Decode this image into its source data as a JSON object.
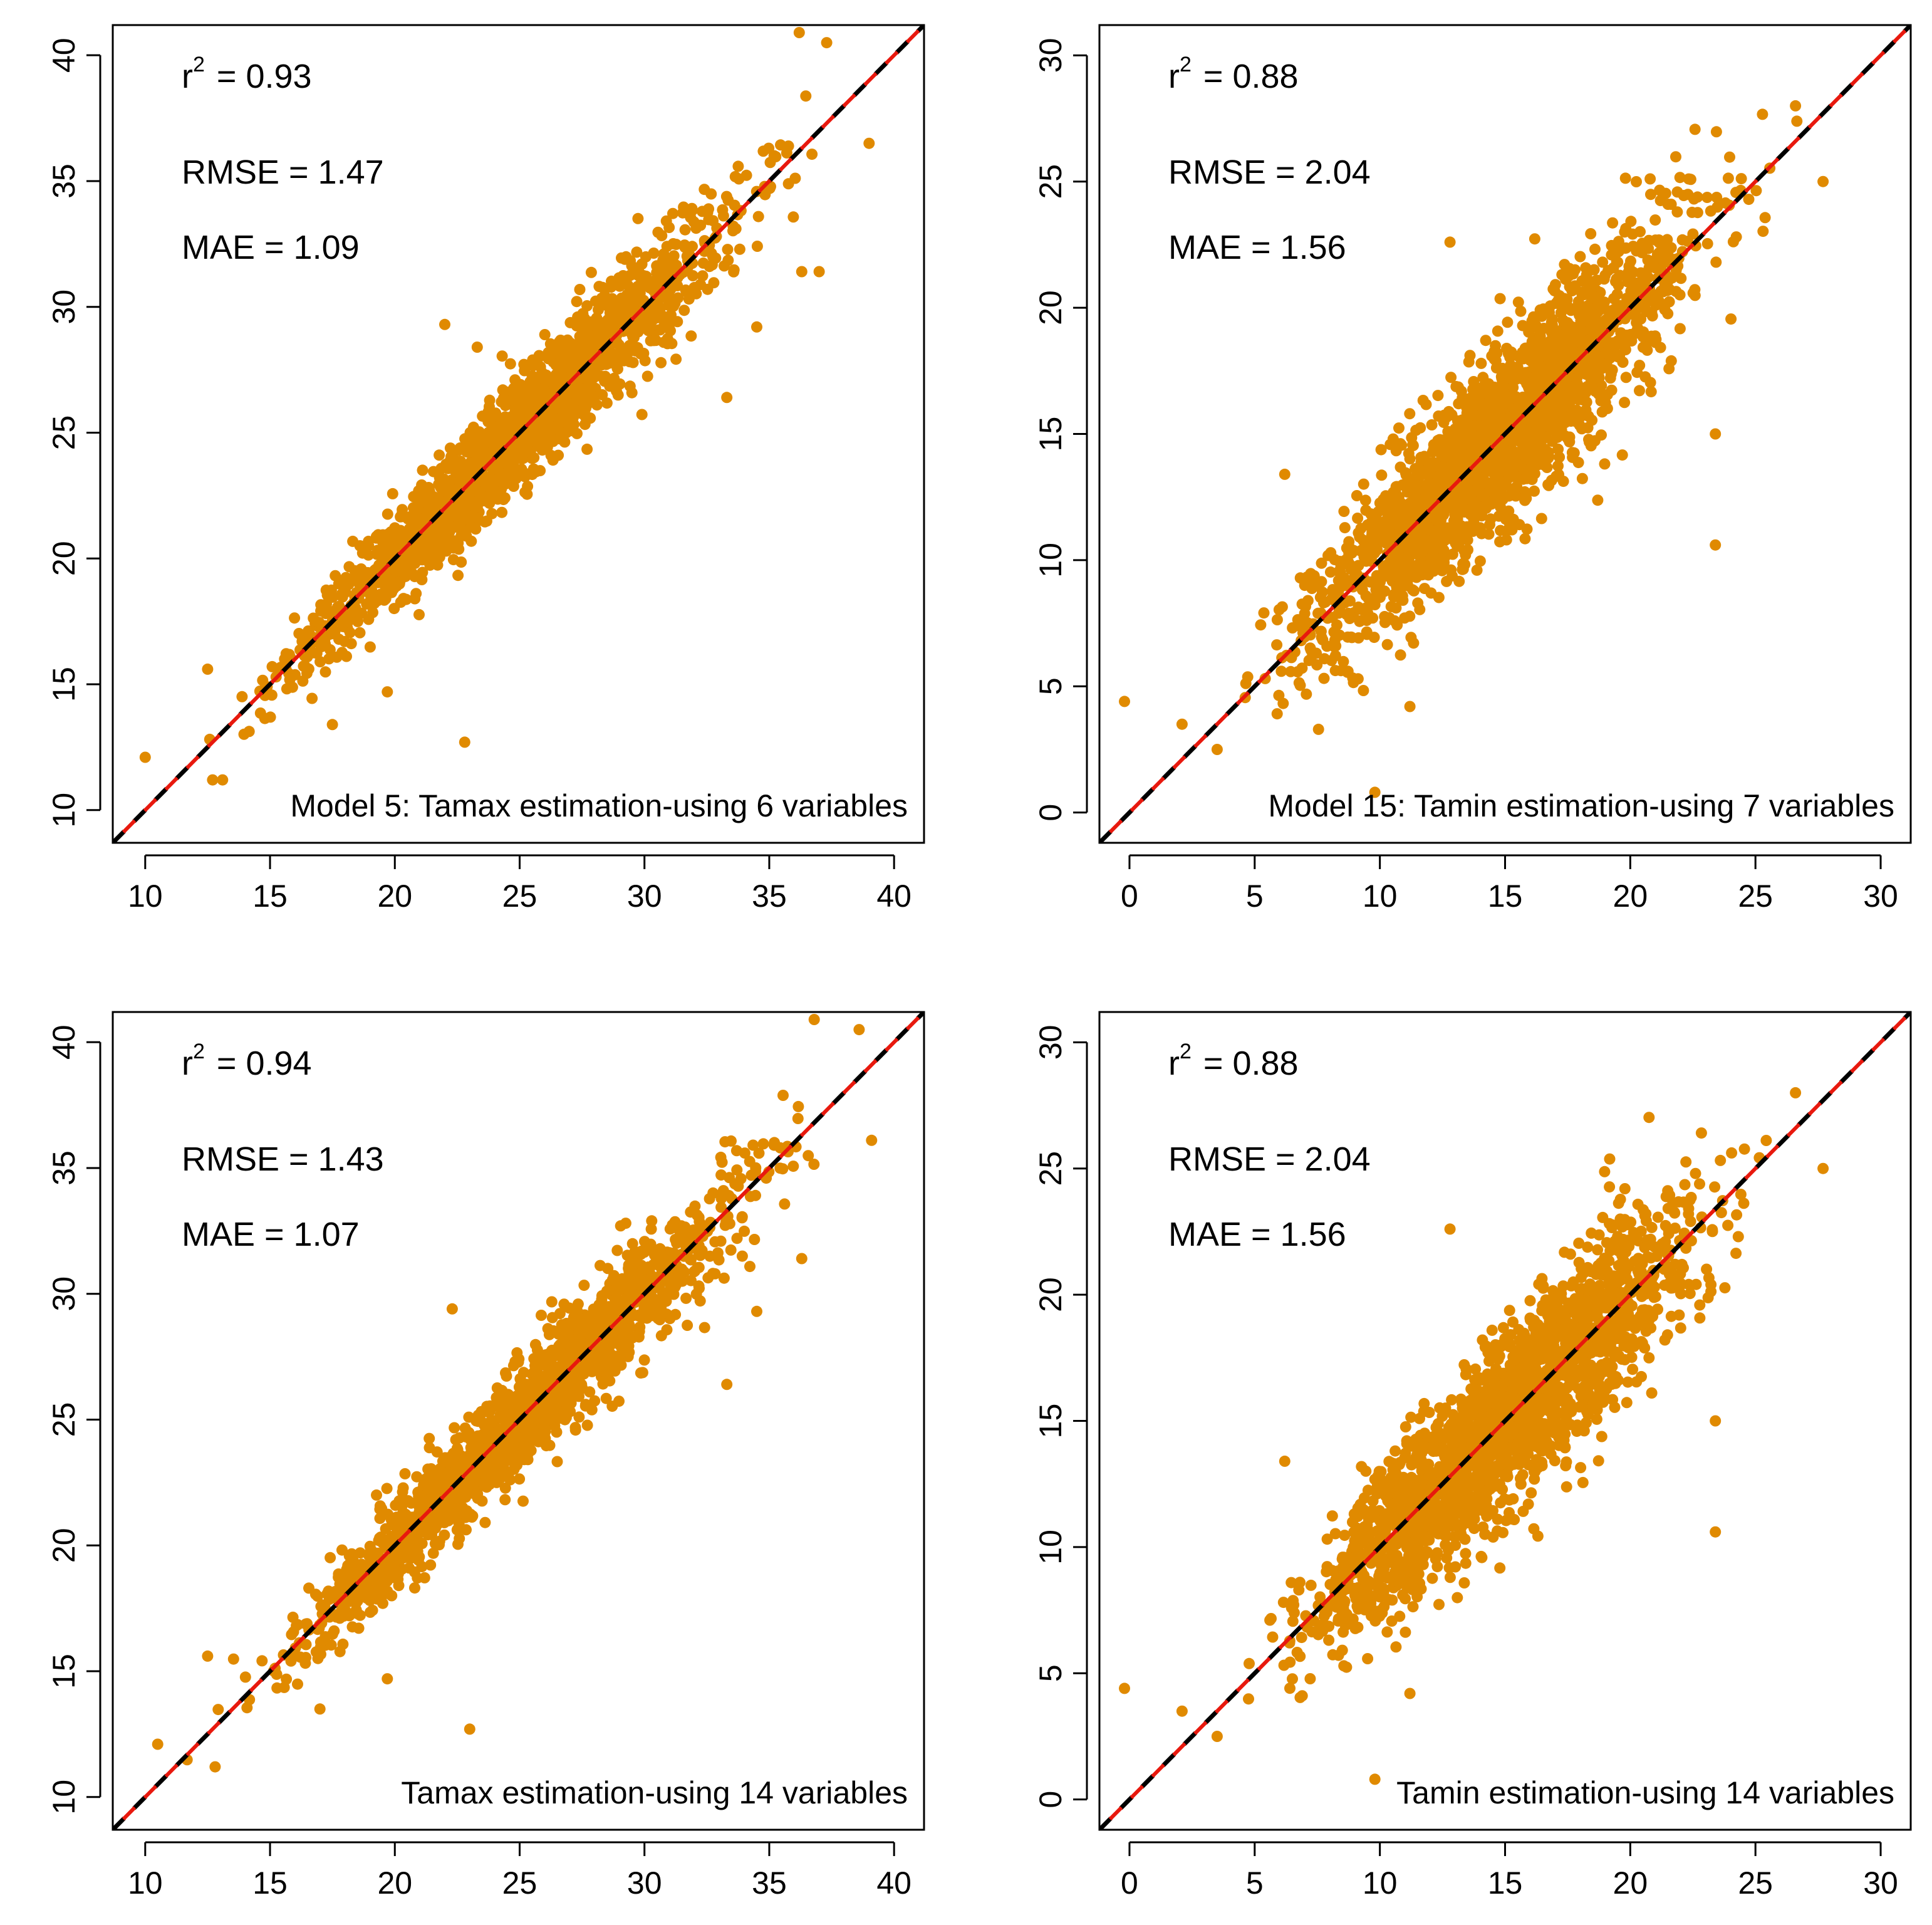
{
  "chart_data": [
    {
      "type": "scatter",
      "model_label": "Model 5: Tamax estimation-using 6 variables",
      "stats": {
        "r2_prefix": "r",
        "r2_sup": "2",
        "r2": "= 0.93",
        "rmse": "RMSE = 1.47",
        "mae": "MAE = 1.09"
      },
      "xlim": [
        8.7,
        41.2
      ],
      "ylim": [
        8.7,
        41.2
      ],
      "xticks": [
        10,
        15,
        20,
        25,
        30,
        35,
        40
      ],
      "yticks": [
        10,
        15,
        20,
        25,
        30,
        35,
        40
      ],
      "xtick_labels": [
        "10",
        "15",
        "20",
        "25",
        "30",
        "35",
        "40"
      ],
      "ytick_labels": [
        "10",
        "15",
        "20",
        "25",
        "30",
        "35",
        "40"
      ],
      "sample_points": {
        "count": 1800,
        "seed": 11,
        "spread_low": 0.6,
        "spread_high": 1.6,
        "x_min": 10,
        "x_max": 39.5
      },
      "outliers": [
        [
          10.0,
          12.1
        ],
        [
          12.5,
          15.6
        ],
        [
          17.5,
          13.4
        ],
        [
          19.7,
          14.7
        ],
        [
          22.8,
          12.7
        ],
        [
          22.0,
          29.3
        ],
        [
          23.3,
          28.4
        ],
        [
          34.5,
          29.2
        ],
        [
          36.3,
          31.4
        ],
        [
          37.0,
          31.4
        ],
        [
          33.3,
          26.4
        ],
        [
          36.2,
          40.9
        ],
        [
          37.3,
          40.5
        ],
        [
          39.0,
          36.5
        ],
        [
          12.7,
          11.2
        ],
        [
          13.1,
          11.2
        ]
      ],
      "lines": [
        {
          "name": "1:1 line",
          "color": "#000000",
          "dash": true
        },
        {
          "name": "fit line",
          "color": "#e8190e",
          "dash": true
        }
      ],
      "point_color": "#e08a00"
    },
    {
      "type": "scatter",
      "model_label": "Model 15: Tamin estimation-using 7 variables",
      "stats": {
        "r2_prefix": "r",
        "r2_sup": "2",
        "r2": "= 0.88",
        "rmse": "RMSE = 2.04",
        "mae": "MAE = 1.56"
      },
      "xlim": [
        -1.2,
        31.2
      ],
      "ylim": [
        -1.2,
        31.2
      ],
      "xticks": [
        0,
        5,
        10,
        15,
        20,
        25,
        30
      ],
      "yticks": [
        0,
        5,
        10,
        15,
        20,
        25,
        30
      ],
      "xtick_labels": [
        "0",
        "5",
        "10",
        "15",
        "20",
        "25",
        "30"
      ],
      "ytick_labels": [
        "0",
        "5",
        "10",
        "15",
        "20",
        "25",
        "30"
      ],
      "sample_points": {
        "count": 2200,
        "seed": 23,
        "spread_low": 1.4,
        "spread_high": 2.0,
        "x_min": 2,
        "x_max": 27.5
      },
      "outliers": [
        [
          -0.2,
          4.4
        ],
        [
          2.1,
          3.5
        ],
        [
          6.2,
          13.4
        ],
        [
          9.8,
          0.8
        ],
        [
          12.8,
          22.6
        ],
        [
          23.4,
          15.0
        ],
        [
          23.4,
          10.6
        ],
        [
          27.7,
          25.0
        ],
        [
          26.6,
          28.0
        ],
        [
          11.2,
          4.2
        ],
        [
          3.5,
          2.5
        ]
      ],
      "lines": [
        {
          "name": "1:1 line",
          "color": "#000000",
          "dash": true
        },
        {
          "name": "fit line",
          "color": "#e8190e",
          "dash": true
        }
      ],
      "point_color": "#e08a00"
    },
    {
      "type": "scatter",
      "model_label": "Tamax estimation-using 14 variables",
      "stats": {
        "r2_prefix": "r",
        "r2_sup": "2",
        "r2": "= 0.94",
        "rmse": "RMSE = 1.43",
        "mae": "MAE = 1.07"
      },
      "xlim": [
        8.7,
        41.2
      ],
      "ylim": [
        8.7,
        41.2
      ],
      "xticks": [
        10,
        15,
        20,
        25,
        30,
        35,
        40
      ],
      "yticks": [
        10,
        15,
        20,
        25,
        30,
        35,
        40
      ],
      "xtick_labels": [
        "10",
        "15",
        "20",
        "25",
        "30",
        "35",
        "40"
      ],
      "ytick_labels": [
        "10",
        "15",
        "20",
        "25",
        "30",
        "35",
        "40"
      ],
      "sample_points": {
        "count": 1800,
        "seed": 37,
        "spread_low": 0.6,
        "spread_high": 1.5,
        "x_min": 10.5,
        "x_max": 39.5
      },
      "outliers": [
        [
          10.5,
          12.1
        ],
        [
          12.5,
          15.6
        ],
        [
          17.0,
          13.5
        ],
        [
          19.7,
          14.7
        ],
        [
          23.0,
          12.7
        ],
        [
          22.3,
          29.4
        ],
        [
          33.3,
          26.4
        ],
        [
          34.5,
          29.3
        ],
        [
          36.3,
          31.4
        ],
        [
          36.8,
          40.9
        ],
        [
          38.6,
          40.5
        ],
        [
          39.1,
          36.1
        ],
        [
          12.8,
          11.2
        ]
      ],
      "lines": [
        {
          "name": "1:1 line",
          "color": "#000000",
          "dash": true
        },
        {
          "name": "fit line",
          "color": "#e8190e",
          "dash": true
        }
      ],
      "point_color": "#e08a00"
    },
    {
      "type": "scatter",
      "model_label": "Tamin estimation-using 14 variables",
      "stats": {
        "r2_prefix": "r",
        "r2_sup": "2",
        "r2": "= 0.88",
        "rmse": "RMSE = 2.04",
        "mae": "MAE = 1.56"
      },
      "xlim": [
        -1.2,
        31.2
      ],
      "ylim": [
        -1.2,
        31.2
      ],
      "xticks": [
        0,
        5,
        10,
        15,
        20,
        25,
        30
      ],
      "yticks": [
        0,
        5,
        10,
        15,
        20,
        25,
        30
      ],
      "xtick_labels": [
        "0",
        "5",
        "10",
        "15",
        "20",
        "25",
        "30"
      ],
      "ytick_labels": [
        "0",
        "5",
        "10",
        "15",
        "20",
        "25",
        "30"
      ],
      "sample_points": {
        "count": 2200,
        "seed": 53,
        "spread_low": 1.4,
        "spread_high": 2.0,
        "x_min": 2,
        "x_max": 27.5
      },
      "outliers": [
        [
          -0.2,
          4.4
        ],
        [
          2.1,
          3.5
        ],
        [
          6.2,
          13.4
        ],
        [
          9.8,
          0.8
        ],
        [
          12.8,
          22.6
        ],
        [
          23.4,
          15.0
        ],
        [
          23.4,
          10.6
        ],
        [
          27.7,
          25.0
        ],
        [
          26.6,
          28.0
        ],
        [
          11.2,
          4.2
        ],
        [
          3.5,
          2.5
        ]
      ],
      "lines": [
        {
          "name": "1:1 line",
          "color": "#000000",
          "dash": true
        },
        {
          "name": "fit line",
          "color": "#e8190e",
          "dash": true
        }
      ],
      "point_color": "#e08a00"
    }
  ]
}
